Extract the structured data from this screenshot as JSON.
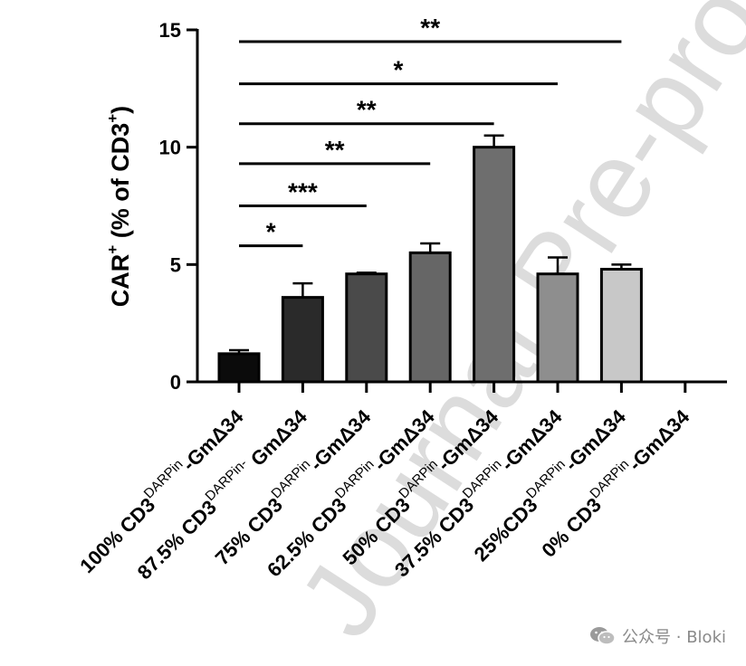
{
  "chart_data": {
    "type": "bar",
    "categories": [
      {
        "pre": "100% CD3",
        "sup": "DARPin",
        "post": "-GmΔ34"
      },
      {
        "pre": "87.5% CD3",
        "sup": "DARPin-",
        "post": " GmΔ34"
      },
      {
        "pre": "75% CD3",
        "sup": "DARPin",
        "post": "-GmΔ34"
      },
      {
        "pre": "62.5% CD3",
        "sup": "DARPin",
        "post": "-GmΔ34"
      },
      {
        "pre": "50% CD3",
        "sup": "DARPin",
        "post": "-GmΔ34"
      },
      {
        "pre": "37.5% CD3",
        "sup": "DARPin",
        "post": "-GmΔ34"
      },
      {
        "pre": "25%CD3",
        "sup": "DARPin",
        "post": "-GmΔ34"
      },
      {
        "pre": "0% CD3",
        "sup": "DARPin",
        "post": "-GmΔ34"
      }
    ],
    "values": [
      1.2,
      3.6,
      4.6,
      5.5,
      10.0,
      4.6,
      4.8,
      0
    ],
    "errors": [
      0.15,
      0.6,
      0.05,
      0.4,
      0.5,
      0.7,
      0.2,
      0
    ],
    "colors": [
      "#0b0b0b",
      "#2a2a2a",
      "#4a4a4a",
      "#666666",
      "#6e6e6e",
      "#8e8e8e",
      "#c8c8c8",
      "#ffffff"
    ],
    "ylabel": {
      "pre": "CAR",
      "sup1": "+",
      "mid": " (% of CD3",
      "sup2": "+",
      "post": ")"
    },
    "ylim": [
      0,
      15
    ],
    "yticks": [
      0,
      5,
      10,
      15
    ],
    "significance": [
      {
        "from": 0,
        "to": 1,
        "label": "*",
        "y": 5.8
      },
      {
        "from": 0,
        "to": 2,
        "label": "***",
        "y": 7.5
      },
      {
        "from": 0,
        "to": 3,
        "label": "**",
        "y": 9.3
      },
      {
        "from": 0,
        "to": 4,
        "label": "**",
        "y": 11.0
      },
      {
        "from": 0,
        "to": 5,
        "label": "*",
        "y": 12.7
      },
      {
        "from": 0,
        "to": 6,
        "label": "**",
        "y": 14.5
      }
    ],
    "grid": false
  },
  "watermark": {
    "text": "Journal Pre-proof"
  },
  "footer": {
    "icon": "wechat-icon",
    "text": "公众号 · Bloki"
  }
}
